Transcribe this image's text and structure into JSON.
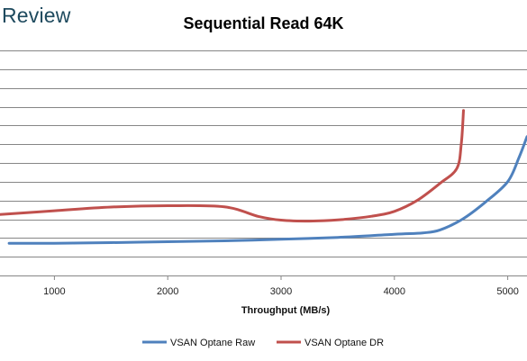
{
  "logo_text": "Review",
  "chart_data": {
    "type": "line",
    "title": "Sequential Read 64K",
    "xlabel": "Throughput (MB/s)",
    "ylabel": "",
    "xlim": [
      520,
      5170
    ],
    "ylim": [
      0,
      12
    ],
    "x_ticks": [
      1000,
      2000,
      3000,
      4000,
      5000
    ],
    "y_gridlines": [
      1,
      2,
      3,
      4,
      5,
      6,
      7,
      8,
      9,
      10,
      11,
      12
    ],
    "grid": true,
    "legend_position": "bottom",
    "series": [
      {
        "name": "VSAN Optane Raw",
        "color": "#4f81bd",
        "points": [
          [
            600,
            1.72
          ],
          [
            1000,
            1.72
          ],
          [
            1500,
            1.75
          ],
          [
            2000,
            1.8
          ],
          [
            2500,
            1.85
          ],
          [
            3000,
            1.93
          ],
          [
            3500,
            2.03
          ],
          [
            4000,
            2.2
          ],
          [
            4250,
            2.27
          ],
          [
            4400,
            2.42
          ],
          [
            4600,
            3.0
          ],
          [
            4800,
            3.9
          ],
          [
            5000,
            5.0
          ],
          [
            5100,
            6.3
          ],
          [
            5170,
            7.4
          ]
        ]
      },
      {
        "name": "VSAN Optane DR",
        "color": "#c0504d",
        "points": [
          [
            520,
            3.25
          ],
          [
            1000,
            3.45
          ],
          [
            1500,
            3.65
          ],
          [
            2000,
            3.72
          ],
          [
            2500,
            3.66
          ],
          [
            2800,
            3.15
          ],
          [
            3000,
            2.95
          ],
          [
            3250,
            2.9
          ],
          [
            3500,
            2.96
          ],
          [
            3800,
            3.16
          ],
          [
            4000,
            3.42
          ],
          [
            4200,
            4.0
          ],
          [
            4400,
            4.9
          ],
          [
            4550,
            5.7
          ],
          [
            4590,
            7.0
          ],
          [
            4610,
            8.8
          ]
        ]
      }
    ]
  }
}
